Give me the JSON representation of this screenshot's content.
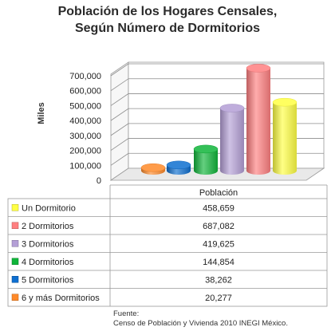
{
  "chart_data": {
    "type": "bar",
    "title": "Población de los Hogares Censales,",
    "subtitle": "Según Número de Dormitorios",
    "ylabel": "Miles",
    "xlabel": "Población",
    "ylim": [
      0,
      700000
    ],
    "yticks": [
      "0",
      "100,000",
      "200,000",
      "300,000",
      "400,000",
      "500,000",
      "600,000",
      "700,000"
    ],
    "three_d": true,
    "grid": true,
    "legend_placement": "data-table",
    "series": [
      {
        "name": "Un Dormitorio",
        "value": 458659,
        "label": "458,659",
        "color": "#ffff44"
      },
      {
        "name": "2 Dormitorios",
        "value": 687082,
        "label": "687,082",
        "color": "#ff7f80"
      },
      {
        "name": "3 Dormitorios",
        "value": 419625,
        "label": "419,625",
        "color": "#b49fd6"
      },
      {
        "name": "4 Dormitorios",
        "value": 144854,
        "label": "144,854",
        "color": "#10b53a"
      },
      {
        "name": "5 Dormitorios",
        "value": 38262,
        "label": "38,262",
        "color": "#0e6fd0"
      },
      {
        "name": "6 y más Dormitorios",
        "value": 20277,
        "label": "20,277",
        "color": "#ff8a2a"
      }
    ]
  },
  "source": {
    "label": "Fuente:",
    "text": "Censo de Población y Vivienda 2010 INEGI México."
  }
}
